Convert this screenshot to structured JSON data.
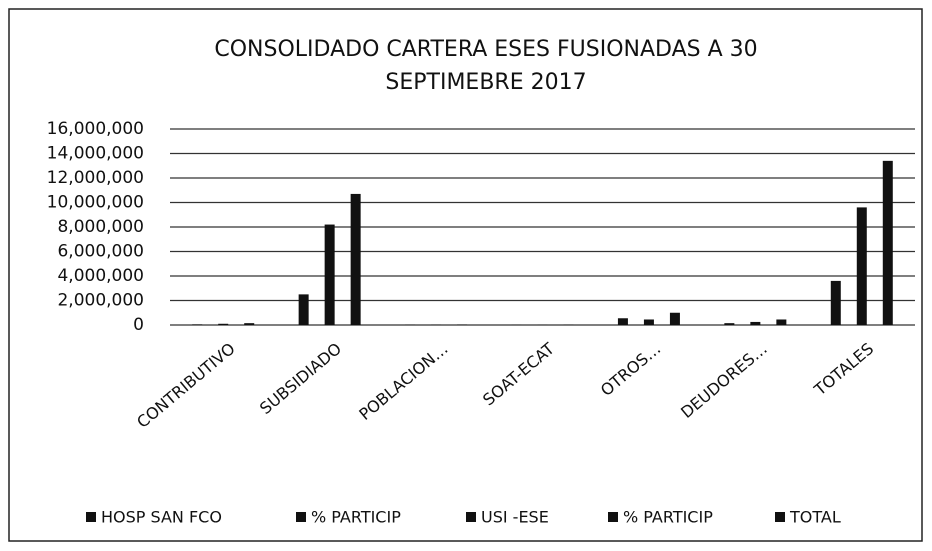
{
  "chart_data": {
    "type": "bar",
    "title": [
      "CONSOLIDADO CARTERA ESES FUSIONADAS A 30",
      "SEPTIMEBRE 2017"
    ],
    "categories": [
      "CONTRIBUTIVO",
      "SUBSIDIADO",
      "POBLACION…",
      "SOAT-ECAT",
      "OTROS…",
      "DEUDORES…",
      "TOTALES"
    ],
    "series": [
      {
        "name": "HOSP SAN FCO",
        "color": "#111111",
        "values": [
          50000,
          2500000,
          20000,
          10000,
          550000,
          150000,
          3600000
        ]
      },
      {
        "name": "% PARTICIP",
        "color": "#111111",
        "values": [
          1,
          69,
          1,
          0,
          15,
          4,
          100
        ]
      },
      {
        "name": "USI -ESE",
        "color": "#111111",
        "values": [
          100000,
          8200000,
          20000,
          10000,
          450000,
          250000,
          9600000
        ]
      },
      {
        "name": "% PARTICIP",
        "color": "#111111",
        "values": [
          1,
          85,
          0,
          0,
          5,
          3,
          100
        ]
      },
      {
        "name": "TOTAL",
        "color": "#111111",
        "values": [
          150000,
          10700000,
          40000,
          20000,
          1000000,
          450000,
          13400000
        ]
      }
    ],
    "ylim": [
      0,
      16000000
    ],
    "yticks": [
      0,
      {
        "value": 2000000,
        "label": "2,000,000"
      },
      {
        "value": 4000000,
        "label": "4,000,000"
      },
      {
        "value": 6000000,
        "label": "6,000,000"
      },
      {
        "value": 8000000,
        "label": "8,000,000"
      },
      {
        "value": 10000000,
        "label": "10,000,000"
      },
      {
        "value": 12000000,
        "label": "12,000,000"
      },
      {
        "value": 14000000,
        "label": "14,000,000"
      },
      {
        "value": 16000000,
        "label": "16,000,000"
      }
    ],
    "grid": true,
    "legend": "bottom"
  }
}
